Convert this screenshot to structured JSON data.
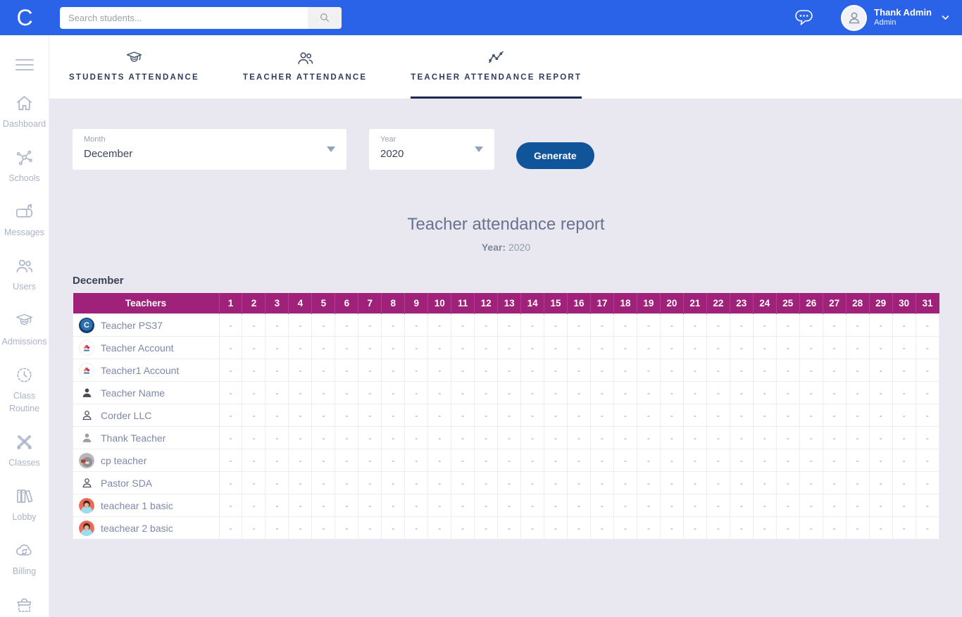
{
  "theme": {
    "topbar_blue": "#2a63e8",
    "table_header_magenta": "#a02179",
    "generate_button_blue": "#10559a",
    "content_background": "#e9e8f1",
    "active_tab_underline": "#1b2a4e"
  },
  "header": {
    "logo": "C",
    "search_placeholder": "Search students...",
    "user_name": "Thank Admin",
    "user_role": "Admin"
  },
  "sidebar": {
    "items": [
      {
        "id": "dashboard",
        "label": "Dashboard",
        "icon": "home-icon"
      },
      {
        "id": "schools",
        "label": "Schools",
        "icon": "network-icon"
      },
      {
        "id": "messages",
        "label": "Messages",
        "icon": "mailbox-icon"
      },
      {
        "id": "users",
        "label": "Users",
        "icon": "users-icon"
      },
      {
        "id": "admissions",
        "label": "Admissions",
        "icon": "graduate-icon"
      },
      {
        "id": "class-routine",
        "label": "Class Routine",
        "icon": "clock-icon"
      },
      {
        "id": "classes",
        "label": "Classes",
        "icon": "pencils-icon"
      },
      {
        "id": "lobby",
        "label": "Lobby",
        "icon": "books-icon"
      },
      {
        "id": "billing",
        "label": "Billing",
        "icon": "cloud-sync-icon"
      },
      {
        "id": "store",
        "label": "",
        "icon": "bag-icon"
      }
    ]
  },
  "tabs": [
    {
      "id": "students-attendance",
      "label": "STUDENTS ATTENDANCE",
      "icon": "graduate-face-icon",
      "active": false
    },
    {
      "id": "teacher-attendance",
      "label": "TEACHER ATTENDANCE",
      "icon": "two-users-icon",
      "active": false
    },
    {
      "id": "teacher-attendance-report",
      "label": "TEACHER ATTENDANCE REPORT",
      "icon": "line-chart-icon",
      "active": true
    }
  ],
  "filters": {
    "month_label": "Month",
    "month_value": "December",
    "year_label": "Year",
    "year_value": "2020",
    "generate_label": "Generate"
  },
  "report": {
    "title": "Teacher attendance report",
    "year_label": "Year:",
    "year_value": "2020",
    "month_heading": "December"
  },
  "table": {
    "teachers_header": "Teachers",
    "days": [
      1,
      2,
      3,
      4,
      5,
      6,
      7,
      8,
      9,
      10,
      11,
      12,
      13,
      14,
      15,
      16,
      17,
      18,
      19,
      20,
      21,
      22,
      23,
      24,
      25,
      26,
      27,
      28,
      29,
      30,
      31
    ],
    "empty_cell": "-",
    "rows": [
      {
        "name": "Teacher PS37",
        "avatar": "logo-c"
      },
      {
        "name": "Teacher Account",
        "avatar": "org-logo"
      },
      {
        "name": "Teacher1 Account",
        "avatar": "org-logo"
      },
      {
        "name": "Teacher Name",
        "avatar": "person-dark"
      },
      {
        "name": "Corder LLC",
        "avatar": "person-outline"
      },
      {
        "name": "Thank Teacher",
        "avatar": "person-gray"
      },
      {
        "name": "cp teacher",
        "avatar": "photo"
      },
      {
        "name": "Pastor SDA",
        "avatar": "person-outline"
      },
      {
        "name": "teachear 1 basic",
        "avatar": "cartoon"
      },
      {
        "name": "teachear 2 basic",
        "avatar": "cartoon"
      }
    ]
  }
}
